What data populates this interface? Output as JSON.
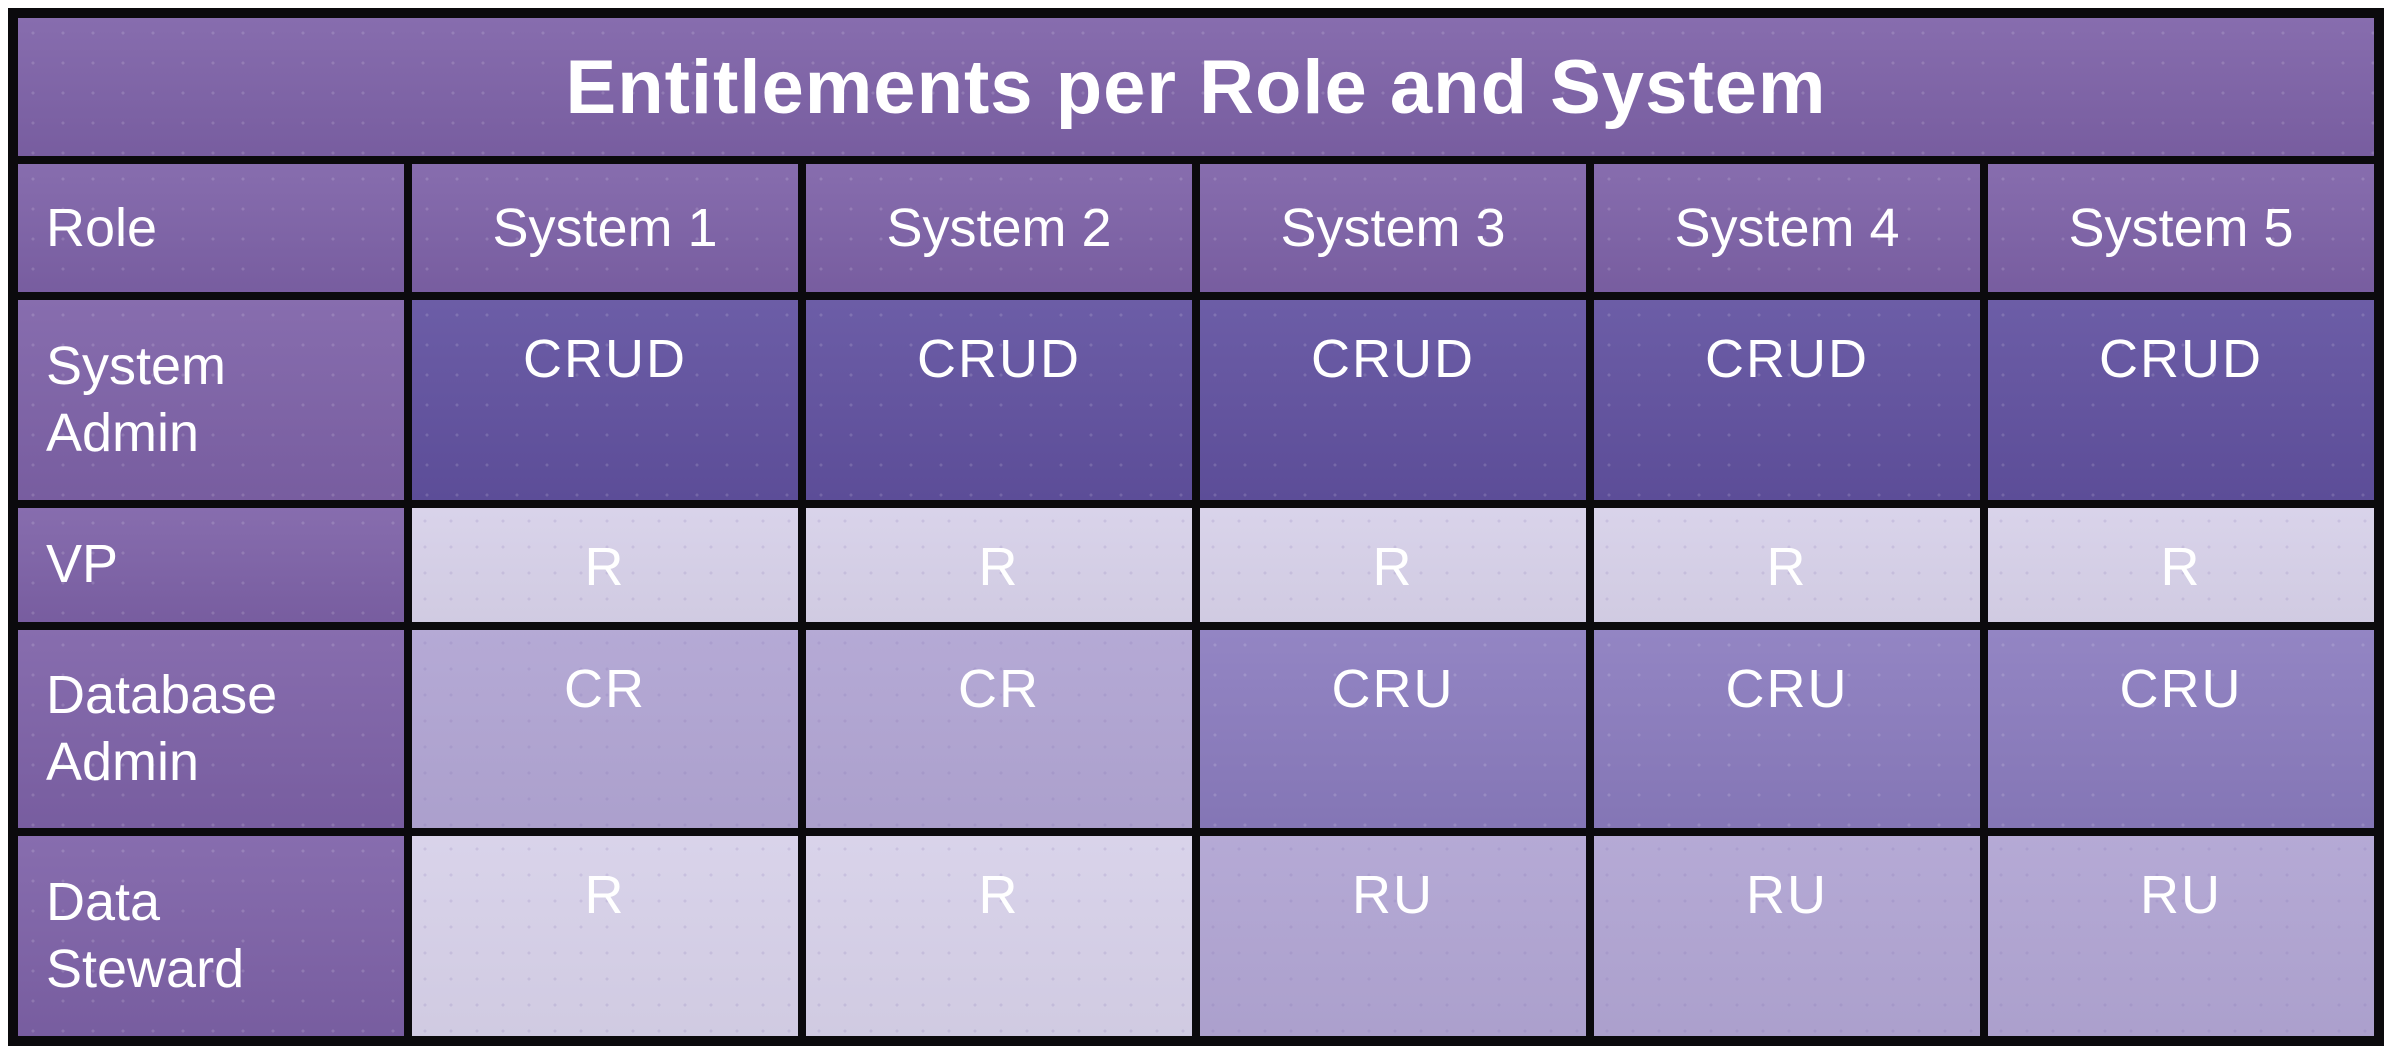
{
  "chart_data": {
    "type": "table",
    "title": "Entitlements per Role and System",
    "columns": [
      "Role",
      "System 1",
      "System 2",
      "System 3",
      "System 4",
      "System 5"
    ],
    "rows": [
      [
        "System Admin",
        "CRUD",
        "CRUD",
        "CRUD",
        "CRUD",
        "CRUD"
      ],
      [
        "VP",
        "R",
        "R",
        "R",
        "R",
        "R"
      ],
      [
        "Database Admin",
        "CR",
        "CR",
        "CRU",
        "CRU",
        "CRU"
      ],
      [
        "Data Steward",
        "R",
        "R",
        "RU",
        "RU",
        "RU"
      ]
    ],
    "legend_position": "none",
    "grid": true,
    "color_encoding_note": "cell shade darkens with number of permissions: R lightest, RU/CR light, CRU medium, CRUD darkest"
  },
  "colors": {
    "page_bg": "#ffffff",
    "border": "#0b0a0d",
    "header_bg": "#7e62a8",
    "perm4": "#6151a0",
    "perm3": "#8b7cbf",
    "perm2": "#b1a5d3",
    "perm1": "#d7d1e9",
    "text": "#ffffff"
  }
}
